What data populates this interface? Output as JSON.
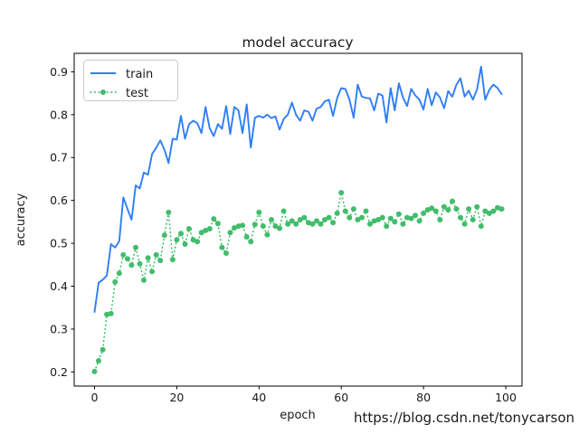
{
  "page": {
    "background": "#ffffff"
  },
  "chart_data": {
    "type": "line",
    "title": "model accuracy",
    "xlabel": "epoch",
    "ylabel": "accuracy",
    "xlim": [
      -4.95,
      103.95
    ],
    "ylim": [
      0.167,
      0.943
    ],
    "xticks": [
      0,
      20,
      40,
      60,
      80,
      100
    ],
    "yticks": [
      0.2,
      0.3,
      0.4,
      0.5,
      0.6,
      0.7,
      0.8,
      0.9
    ],
    "grid": false,
    "legend_position": "upper-left",
    "frame_color": "#000000",
    "series": [
      {
        "name": "train",
        "color": "#2e7ef6",
        "style": "solid",
        "marker": "none",
        "x_start": 0,
        "values": [
          0.34,
          0.408,
          0.415,
          0.425,
          0.498,
          0.49,
          0.505,
          0.607,
          0.58,
          0.555,
          0.635,
          0.628,
          0.665,
          0.66,
          0.708,
          0.723,
          0.74,
          0.718,
          0.687,
          0.744,
          0.742,
          0.797,
          0.744,
          0.778,
          0.786,
          0.78,
          0.757,
          0.818,
          0.768,
          0.75,
          0.778,
          0.767,
          0.82,
          0.755,
          0.818,
          0.81,
          0.757,
          0.824,
          0.723,
          0.793,
          0.797,
          0.793,
          0.8,
          0.792,
          0.796,
          0.765,
          0.79,
          0.8,
          0.828,
          0.8,
          0.786,
          0.81,
          0.807,
          0.786,
          0.814,
          0.818,
          0.831,
          0.835,
          0.797,
          0.839,
          0.862,
          0.86,
          0.835,
          0.793,
          0.87,
          0.842,
          0.839,
          0.838,
          0.81,
          0.849,
          0.845,
          0.782,
          0.862,
          0.81,
          0.873,
          0.84,
          0.82,
          0.86,
          0.845,
          0.835,
          0.812,
          0.86,
          0.822,
          0.852,
          0.84,
          0.815,
          0.855,
          0.842,
          0.87,
          0.885,
          0.842,
          0.856,
          0.835,
          0.858,
          0.912,
          0.835,
          0.858,
          0.87,
          0.862,
          0.848
        ]
      },
      {
        "name": "test",
        "color": "#41bd6b",
        "style": "dotted",
        "marker": "circle",
        "x_start": 0,
        "values": [
          0.201,
          0.226,
          0.252,
          0.334,
          0.336,
          0.41,
          0.43,
          0.473,
          0.464,
          0.449,
          0.49,
          0.452,
          0.414,
          0.466,
          0.434,
          0.473,
          0.46,
          0.519,
          0.572,
          0.462,
          0.508,
          0.523,
          0.498,
          0.534,
          0.508,
          0.504,
          0.525,
          0.53,
          0.534,
          0.557,
          0.546,
          0.49,
          0.477,
          0.525,
          0.536,
          0.54,
          0.542,
          0.515,
          0.504,
          0.544,
          0.572,
          0.54,
          0.52,
          0.555,
          0.54,
          0.535,
          0.575,
          0.545,
          0.552,
          0.545,
          0.555,
          0.56,
          0.548,
          0.545,
          0.552,
          0.545,
          0.555,
          0.56,
          0.548,
          0.57,
          0.618,
          0.575,
          0.56,
          0.58,
          0.555,
          0.56,
          0.575,
          0.545,
          0.552,
          0.555,
          0.56,
          0.54,
          0.558,
          0.55,
          0.568,
          0.545,
          0.56,
          0.558,
          0.565,
          0.552,
          0.57,
          0.578,
          0.582,
          0.575,
          0.555,
          0.585,
          0.578,
          0.598,
          0.58,
          0.56,
          0.545,
          0.58,
          0.555,
          0.585,
          0.54,
          0.575,
          0.57,
          0.575,
          0.583,
          0.58
        ]
      }
    ]
  },
  "legend": {
    "entries": [
      {
        "label": "train"
      },
      {
        "label": "test"
      }
    ]
  },
  "watermark": {
    "text": "https://blog.csdn.net/tonycarson",
    "color": "#d8d8d8"
  }
}
